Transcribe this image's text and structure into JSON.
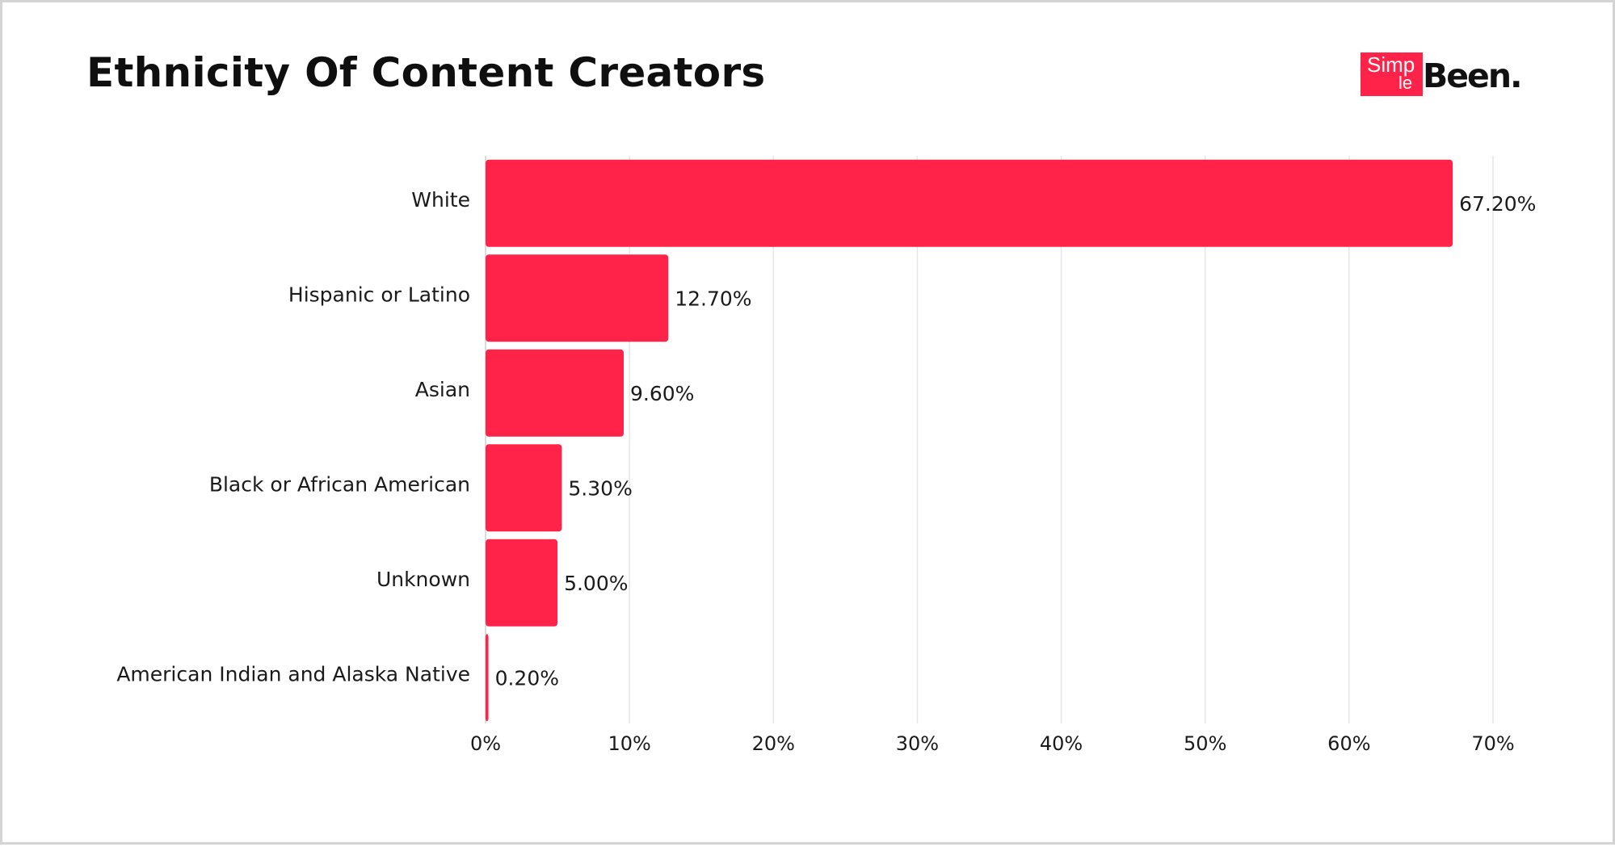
{
  "header": {
    "title": "Ethnicity Of Content Creators"
  },
  "logo": {
    "part1": "Simp",
    "part2": "le",
    "part3": "Been."
  },
  "colors": {
    "bar": "#ff2249",
    "grid": "#e6e6e6",
    "text": "#1a1a1a"
  },
  "chart_data": {
    "type": "bar",
    "orientation": "horizontal",
    "title": "Ethnicity Of Content Creators",
    "categories": [
      "White",
      "Hispanic or Latino",
      "Asian",
      "Black or African American",
      "Unknown",
      "American Indian and Alaska Native"
    ],
    "values": [
      67.2,
      12.7,
      9.6,
      5.3,
      5.0,
      0.2
    ],
    "value_labels": [
      "67.20%",
      "12.70%",
      "9.60%",
      "5.30%",
      "5.00%",
      "0.20%"
    ],
    "xlim": [
      0,
      70
    ],
    "xticks": [
      0,
      10,
      20,
      30,
      40,
      50,
      60,
      70
    ],
    "xtick_labels": [
      "0%",
      "10%",
      "20%",
      "30%",
      "40%",
      "50%",
      "60%",
      "70%"
    ],
    "xlabel": "",
    "ylabel": "",
    "grid": "vertical",
    "legend": "none"
  }
}
